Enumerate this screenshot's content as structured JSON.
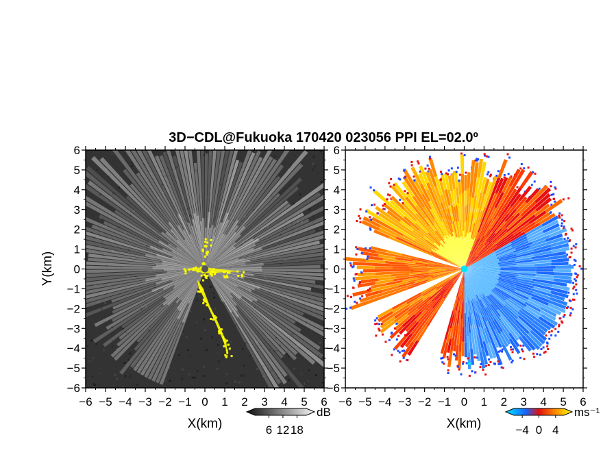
{
  "title": "3D−CDL@Fukuoka 170420 023056 PPI EL=02.0º",
  "chart_data": [
    {
      "type": "heatmap",
      "panel": "reflectivity",
      "xlabel": "X(km)",
      "ylabel": "Y(km)",
      "xlim": [
        -6,
        6
      ],
      "ylim": [
        -6,
        6
      ],
      "x_ticks": [
        -6,
        -5,
        -4,
        -3,
        -2,
        -1,
        0,
        1,
        2,
        3,
        4,
        5,
        6
      ],
      "y_ticks": [
        -6,
        -5,
        -4,
        -3,
        -2,
        -1,
        0,
        1,
        2,
        3,
        4,
        5,
        6
      ],
      "colorbar": {
        "unit": "dB",
        "ticks": [
          6,
          12,
          18
        ],
        "range": [
          0,
          22
        ],
        "palette": "grayscale"
      },
      "clutter_color": "#ffff00",
      "background_color": "#333333"
    },
    {
      "type": "heatmap",
      "panel": "doppler-velocity",
      "xlabel": "X(km)",
      "xlim": [
        -6,
        6
      ],
      "ylim": [
        -6,
        6
      ],
      "x_ticks": [
        -6,
        -5,
        -4,
        -3,
        -2,
        -1,
        0,
        1,
        2,
        3,
        4,
        5,
        6
      ],
      "y_ticks": [
        -6,
        -5,
        -4,
        -3,
        -2,
        -1,
        0,
        1,
        2,
        3,
        4,
        5,
        6
      ],
      "colorbar": {
        "unit": "ms⁻¹",
        "ticks": [
          -4,
          0,
          4
        ],
        "range": [
          -6,
          6
        ],
        "palette": "cyan-blue-red-yellow"
      },
      "radar_site_color": "#00e5ff"
    }
  ]
}
